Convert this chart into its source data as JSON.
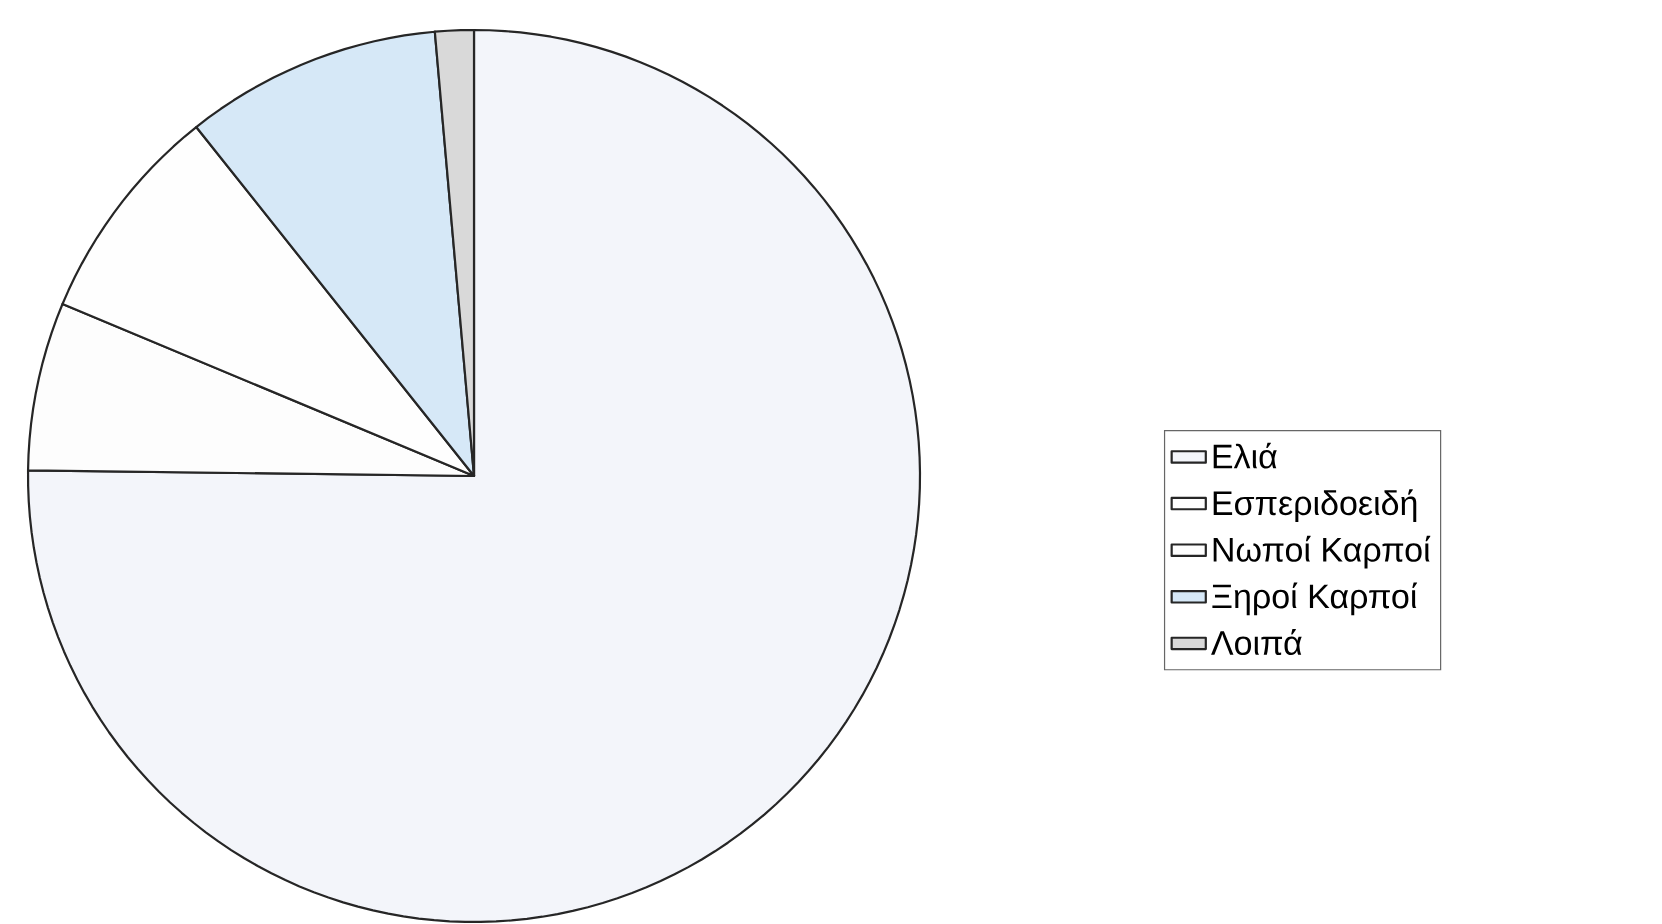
{
  "chart_data": {
    "type": "pie",
    "categories": [
      "Ελιά",
      "Εσπεριδοειδή",
      "Νωποί Καρποί",
      "Ξηροί Καρποί",
      "Λοιπά"
    ],
    "values": [
      75.2,
      6.1,
      8.0,
      9.3,
      1.4
    ],
    "colors": [
      "#f3f5fa",
      "#fdfdfd",
      "#fefefe",
      "#d6e8f7",
      "#d9d9d9"
    ],
    "legend": "right"
  }
}
